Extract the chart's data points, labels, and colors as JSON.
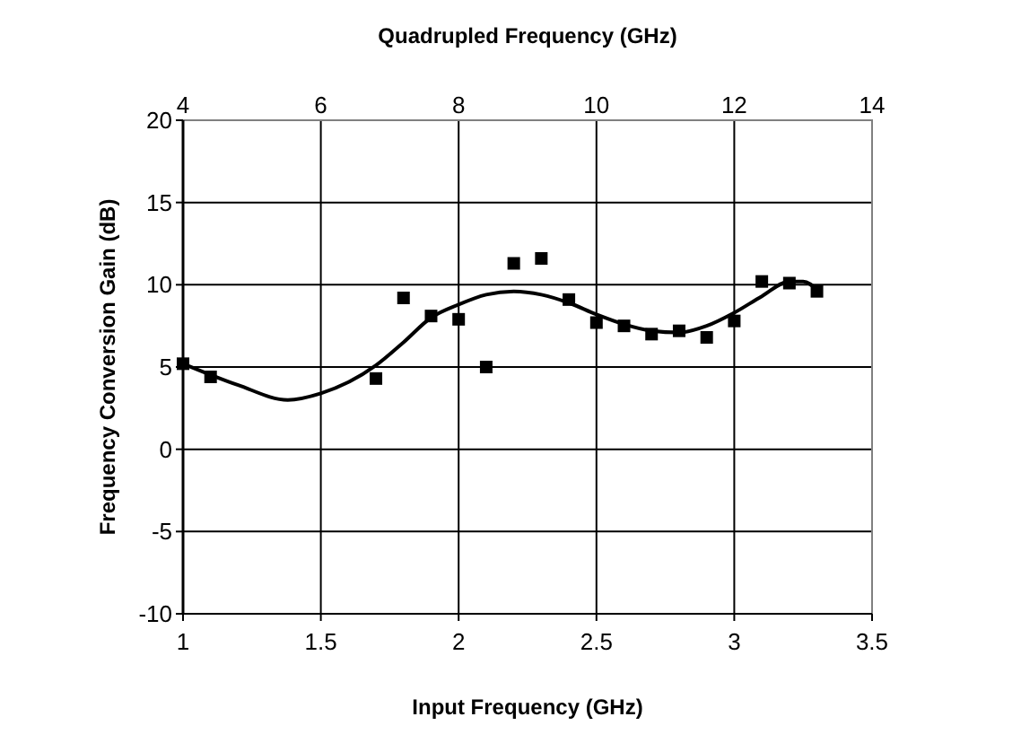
{
  "chart_data": {
    "type": "scatter",
    "xlabel": "Input Frequency (GHz)",
    "ylabel": "Frequency Conversion Gain (dB)",
    "x2label": "Quadrupled Frequency (GHz)",
    "xlim": [
      1,
      3.5
    ],
    "xticks": [
      1,
      1.5,
      2,
      2.5,
      3,
      3.5
    ],
    "x2lim": [
      4,
      14
    ],
    "x2ticks": [
      4,
      6,
      8,
      10,
      12,
      14
    ],
    "ylim": [
      -10,
      20
    ],
    "yticks": [
      -10,
      -5,
      0,
      5,
      10,
      15,
      20
    ],
    "grid": true,
    "series": [
      {
        "color": "#000000",
        "marker": "square",
        "x": [
          1,
          1.1,
          1.7,
          1.8,
          1.9,
          2.0,
          2.1,
          2.2,
          2.3,
          2.4,
          2.5,
          2.6,
          2.7,
          2.8,
          2.9,
          3.0,
          3.1,
          3.2,
          3.3
        ],
        "values": [
          5.2,
          4.4,
          4.3,
          9.2,
          8.1,
          7.9,
          5.0,
          11.3,
          11.6,
          9.1,
          7.7,
          7.5,
          7.0,
          7.2,
          6.8,
          7.8,
          10.2,
          10.1,
          9.6
        ]
      },
      {
        "type": "line",
        "color": "#000000",
        "line_style": "solid",
        "marker": "none",
        "x": [
          1,
          1.2,
          1.38,
          1.5,
          1.7,
          1.8,
          1.9,
          2.0,
          2.1,
          2.2,
          2.3,
          2.4,
          2.5,
          2.6,
          2.7,
          2.8,
          2.9,
          3.0,
          3.1,
          3.2,
          3.25,
          3.3
        ],
        "values": [
          5.2,
          3.9,
          3.0,
          3.4,
          5.1,
          6.5,
          8.0,
          8.8,
          9.4,
          9.6,
          9.4,
          8.9,
          8.2,
          7.6,
          7.2,
          7.1,
          7.5,
          8.3,
          9.3,
          10.2,
          10.2,
          9.7
        ]
      }
    ]
  }
}
